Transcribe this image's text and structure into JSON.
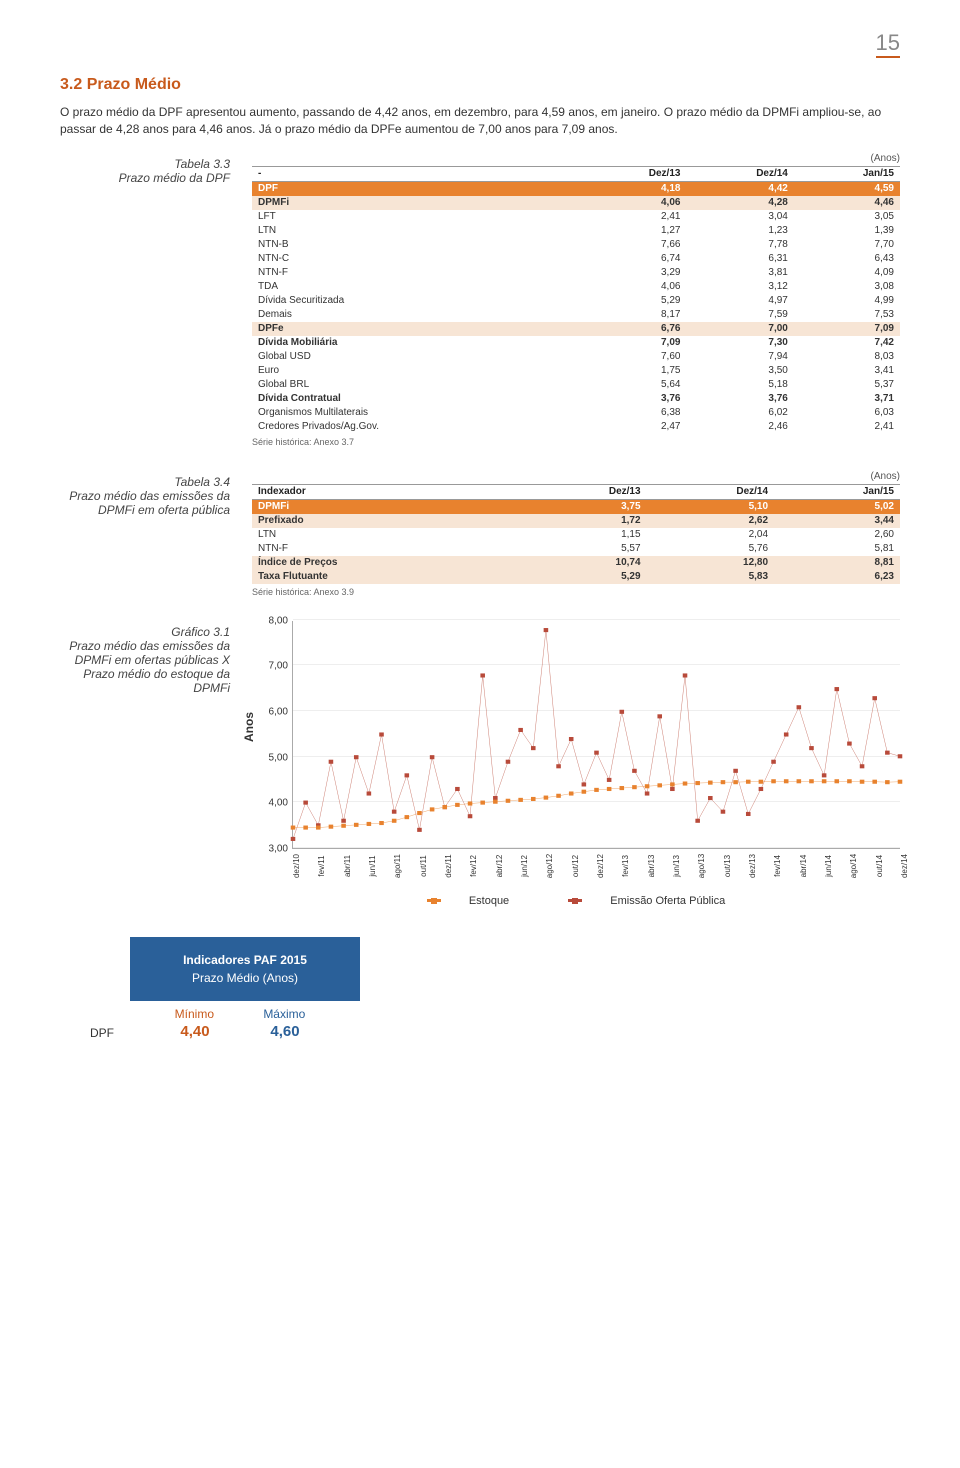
{
  "page_number": "15",
  "section_number": "3.2",
  "section_title": "Prazo Médio",
  "intro_text": "O prazo médio da DPF apresentou aumento, passando de 4,42 anos, em dezembro, para 4,59 anos, em janeiro. O prazo médio da DPMFi ampliou-se, ao passar de 4,28 anos para 4,46 anos. Já o prazo médio da DPFe aumentou de 7,00 anos para 7,09 anos.",
  "table3_3": {
    "caption_a": "Tabela 3.3",
    "caption_b": "Prazo médio da DPF",
    "unit": "(Anos)",
    "headers": [
      "-",
      "Dez/13",
      "Dez/14",
      "Jan/15"
    ],
    "rows": [
      {
        "style": "hl-orange",
        "cells": [
          "DPF",
          "4,18",
          "4,42",
          "4,59"
        ]
      },
      {
        "style": "hl-light",
        "cells": [
          "DPMFi",
          "4,06",
          "4,28",
          "4,46"
        ]
      },
      {
        "style": "",
        "cells": [
          "LFT",
          "2,41",
          "3,04",
          "3,05"
        ]
      },
      {
        "style": "",
        "cells": [
          "LTN",
          "1,27",
          "1,23",
          "1,39"
        ]
      },
      {
        "style": "",
        "cells": [
          "NTN-B",
          "7,66",
          "7,78",
          "7,70"
        ]
      },
      {
        "style": "",
        "cells": [
          "NTN-C",
          "6,74",
          "6,31",
          "6,43"
        ]
      },
      {
        "style": "",
        "cells": [
          "NTN-F",
          "3,29",
          "3,81",
          "4,09"
        ]
      },
      {
        "style": "",
        "cells": [
          "TDA",
          "4,06",
          "3,12",
          "3,08"
        ]
      },
      {
        "style": "",
        "cells": [
          "Dívida Securitizada",
          "5,29",
          "4,97",
          "4,99"
        ]
      },
      {
        "style": "",
        "cells": [
          "Demais",
          "8,17",
          "7,59",
          "7,53"
        ]
      },
      {
        "style": "hl-light",
        "cells": [
          "DPFe",
          "6,76",
          "7,00",
          "7,09"
        ]
      },
      {
        "style": "hl-bold",
        "cells": [
          "Dívida Mobiliária",
          "7,09",
          "7,30",
          "7,42"
        ]
      },
      {
        "style": "",
        "cells": [
          "Global USD",
          "7,60",
          "7,94",
          "8,03"
        ]
      },
      {
        "style": "",
        "cells": [
          "Euro",
          "1,75",
          "3,50",
          "3,41"
        ]
      },
      {
        "style": "",
        "cells": [
          "Global BRL",
          "5,64",
          "5,18",
          "5,37"
        ]
      },
      {
        "style": "hl-bold",
        "cells": [
          "Dívida Contratual",
          "3,76",
          "3,76",
          "3,71"
        ]
      },
      {
        "style": "",
        "cells": [
          "Organismos Multilaterais",
          "6,38",
          "6,02",
          "6,03"
        ]
      },
      {
        "style": "",
        "cells": [
          "Credores Privados/Ag.Gov.",
          "2,47",
          "2,46",
          "2,41"
        ]
      }
    ],
    "footnote": "Série histórica: Anexo 3.7"
  },
  "table3_4": {
    "caption_a": "Tabela 3.4",
    "caption_b": "Prazo médio das emissões da DPMFi em oferta pública",
    "unit": "(Anos)",
    "headers": [
      "Indexador",
      "Dez/13",
      "Dez/14",
      "Jan/15"
    ],
    "rows": [
      {
        "style": "hl-orange",
        "cells": [
          "DPMFi",
          "3,75",
          "5,10",
          "5,02"
        ]
      },
      {
        "style": "hl-light",
        "cells": [
          "Prefixado",
          "1,72",
          "2,62",
          "3,44"
        ]
      },
      {
        "style": "",
        "cells": [
          "LTN",
          "1,15",
          "2,04",
          "2,60"
        ]
      },
      {
        "style": "",
        "cells": [
          "NTN-F",
          "5,57",
          "5,76",
          "5,81"
        ]
      },
      {
        "style": "hl-light",
        "cells": [
          "Índice de Preços",
          "10,74",
          "12,80",
          "8,81"
        ]
      },
      {
        "style": "hl-light",
        "cells": [
          "Taxa Flutuante",
          "5,29",
          "5,83",
          "6,23"
        ]
      }
    ],
    "footnote": "Série histórica: Anexo 3.9"
  },
  "chart3_1": {
    "caption_a": "Gráfico 3.1",
    "caption_b": "Prazo médio das emissões da DPMFi em ofertas públicas X Prazo médio do estoque da DPMFi",
    "y_label": "Anos",
    "y_min": 3.0,
    "y_max": 8.0,
    "y_ticks": [
      "3,00",
      "4,00",
      "5,00",
      "6,00",
      "7,00",
      "8,00"
    ],
    "x_labels": [
      "dez/10",
      "fev/11",
      "abr/11",
      "jun/11",
      "ago/11",
      "out/11",
      "dez/11",
      "fev/12",
      "abr/12",
      "jun/12",
      "ago/12",
      "out/12",
      "dez/12",
      "fev/13",
      "abr/13",
      "jun/13",
      "ago/13",
      "out/13",
      "dez/13",
      "fev/14",
      "abr/14",
      "jun/14",
      "ago/14",
      "out/14",
      "dez/14"
    ],
    "estoque": {
      "color": "#e8822e",
      "values": [
        3.45,
        3.45,
        3.45,
        3.47,
        3.49,
        3.51,
        3.53,
        3.55,
        3.6,
        3.68,
        3.77,
        3.85,
        3.9,
        3.95,
        3.98,
        4.0,
        4.02,
        4.04,
        4.06,
        4.08,
        4.11,
        4.15,
        4.2,
        4.24,
        4.28,
        4.3,
        4.32,
        4.34,
        4.36,
        4.38,
        4.4,
        4.42,
        4.43,
        4.44,
        4.45,
        4.45,
        4.46,
        4.46,
        4.47,
        4.47,
        4.47,
        4.47,
        4.47,
        4.47,
        4.47,
        4.46,
        4.46,
        4.45,
        4.46
      ]
    },
    "emissao": {
      "color": "#b84a3a",
      "values": [
        3.2,
        4.0,
        3.5,
        4.9,
        3.6,
        5.0,
        4.2,
        5.5,
        3.8,
        4.6,
        3.4,
        5.0,
        3.9,
        4.3,
        3.7,
        6.8,
        4.1,
        4.9,
        5.6,
        5.2,
        7.8,
        4.8,
        5.4,
        4.4,
        5.1,
        4.5,
        6.0,
        4.7,
        4.2,
        5.9,
        4.3,
        6.8,
        3.6,
        4.1,
        3.8,
        4.7,
        3.75,
        4.3,
        4.9,
        5.5,
        6.1,
        5.2,
        4.6,
        6.5,
        5.3,
        4.8,
        6.3,
        5.1,
        5.02
      ]
    },
    "legend": {
      "estoque": "Estoque",
      "emissao": "Emissão Oferta Pública"
    }
  },
  "paf": {
    "title1": "Indicadores PAF 2015",
    "title2": "Prazo Médio (Anos)",
    "side_label": "DPF",
    "min_label": "Mínimo",
    "max_label": "Máximo",
    "min_val": "4,40",
    "max_val": "4,60",
    "min_color": "#c85a1c",
    "max_color": "#2a6099"
  }
}
